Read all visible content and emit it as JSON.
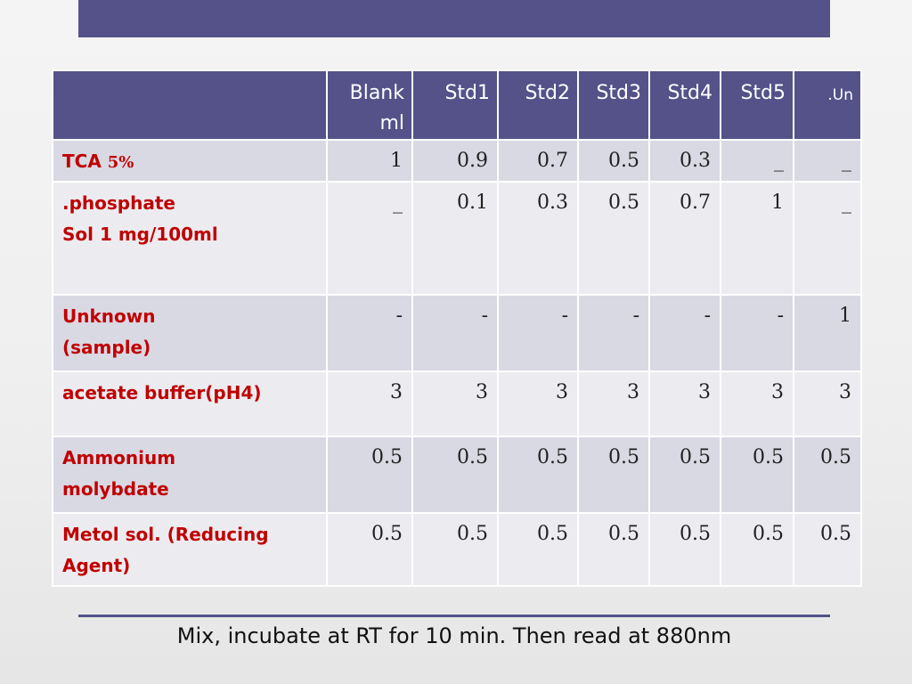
{
  "table": {
    "headers": [
      "",
      "Blank ml",
      "Std1",
      "Std2",
      "Std3",
      "Std4",
      "Std5",
      ".Un"
    ],
    "rows": [
      {
        "label_lines": [
          "TCA",
          "5%"
        ],
        "values": [
          "1",
          "0.9",
          "0.7",
          "0.5",
          "0.3",
          "_",
          "_"
        ]
      },
      {
        "label_lines": [
          ".phosphate",
          "Sol 1 mg/100ml"
        ],
        "values": [
          "_",
          "0.1",
          "0.3",
          "0.5",
          "0.7",
          "1",
          "_"
        ]
      },
      {
        "label_lines": [
          "Unknown",
          "(sample)"
        ],
        "values": [
          "-",
          "-",
          "-",
          "-",
          "-",
          "-",
          "1"
        ]
      },
      {
        "label_lines": [
          "acetate buffer(pH4)"
        ],
        "values": [
          "3",
          "3",
          "3",
          "3",
          "3",
          "3",
          "3"
        ]
      },
      {
        "label_lines": [
          "Ammonium",
          "molybdate"
        ],
        "values": [
          "0.5",
          "0.5",
          "0.5",
          "0.5",
          "0.5",
          "0.5",
          "0.5"
        ]
      },
      {
        "label_lines": [
          "Metol sol. (Reducing",
          "Agent)"
        ],
        "values": [
          "0.5",
          "0.5",
          "0.5",
          "0.5",
          "0.5",
          "0.5",
          "0.5"
        ]
      }
    ]
  },
  "footer": {
    "note": "Mix, incubate at RT for 10 min. Then read at 880nm"
  },
  "colors": {
    "header_bg": "#545289",
    "label_text": "#c00000",
    "row_odd": "#d9d9e3",
    "row_even": "#ececf0"
  }
}
